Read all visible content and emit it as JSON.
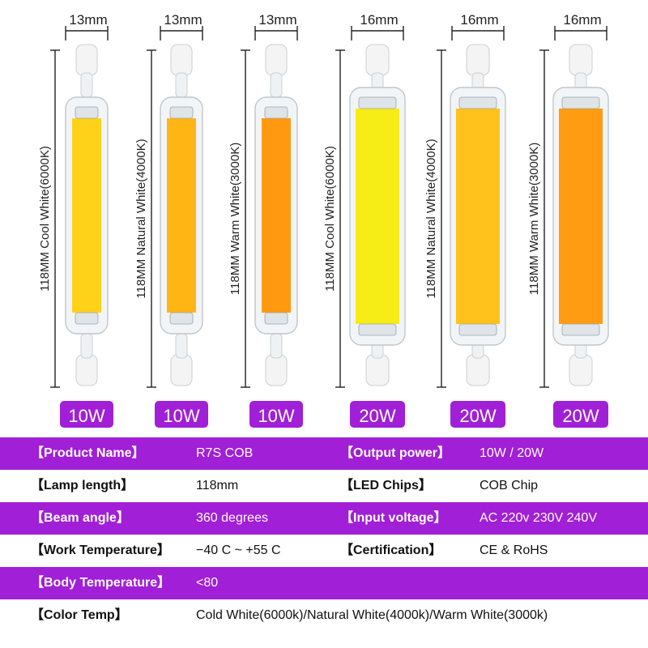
{
  "lamps": [
    {
      "width_label": "13mm",
      "side_label": "118MM  Cool White(6000K)",
      "power": "10W",
      "type": "thin",
      "chip": "#ffd21a"
    },
    {
      "width_label": "13mm",
      "side_label": "118MM  Natural White(4000K)",
      "power": "10W",
      "type": "thin",
      "chip": "#ffb514"
    },
    {
      "width_label": "13mm",
      "side_label": "118MM  Warm White(3000K)",
      "power": "10W",
      "type": "thin",
      "chip": "#ff9a10"
    },
    {
      "width_label": "16mm",
      "side_label": "118MM  Cool White(6000K)",
      "power": "20W",
      "type": "wide",
      "chip": "#f6ec16"
    },
    {
      "width_label": "16mm",
      "side_label": "118MM  Natural White(4000K)",
      "power": "20W",
      "type": "wide",
      "chip": "#ffc21c"
    },
    {
      "width_label": "16mm",
      "side_label": "118MM  Warm White(3000K)",
      "power": "20W",
      "type": "wide",
      "chip": "#ff9c12"
    }
  ],
  "specs": {
    "row1": {
      "label_a": "【Product Name】",
      "value_a": "R7S COB",
      "label_b": "【Output power】",
      "value_b": "10W / 20W"
    },
    "row2": {
      "label_a": "【Lamp length】",
      "value_a": "118mm",
      "label_b": "【LED Chips】",
      "value_b": "COB Chip"
    },
    "row3": {
      "label_a": "【Beam angle】",
      "value_a": "360 degrees",
      "label_b": "【Input voltage】",
      "value_b": "AC 220v 230V 240V"
    },
    "row4": {
      "label_a": "【Work Temperature】",
      "value_a": "−40 C ~ +55 C",
      "label_b": "【Certification】",
      "value_b": "CE & RoHS"
    },
    "row5": {
      "label_a": "【Body Temperature】",
      "value_a": "<80"
    },
    "row6": {
      "label_a": "【Color Temp】",
      "value_a": "Cold White(6000k)/Natural White(4000k)/Warm White(3000k)"
    }
  },
  "colors": {
    "accent": "#a11fd6",
    "badge": "#a11fd6"
  }
}
